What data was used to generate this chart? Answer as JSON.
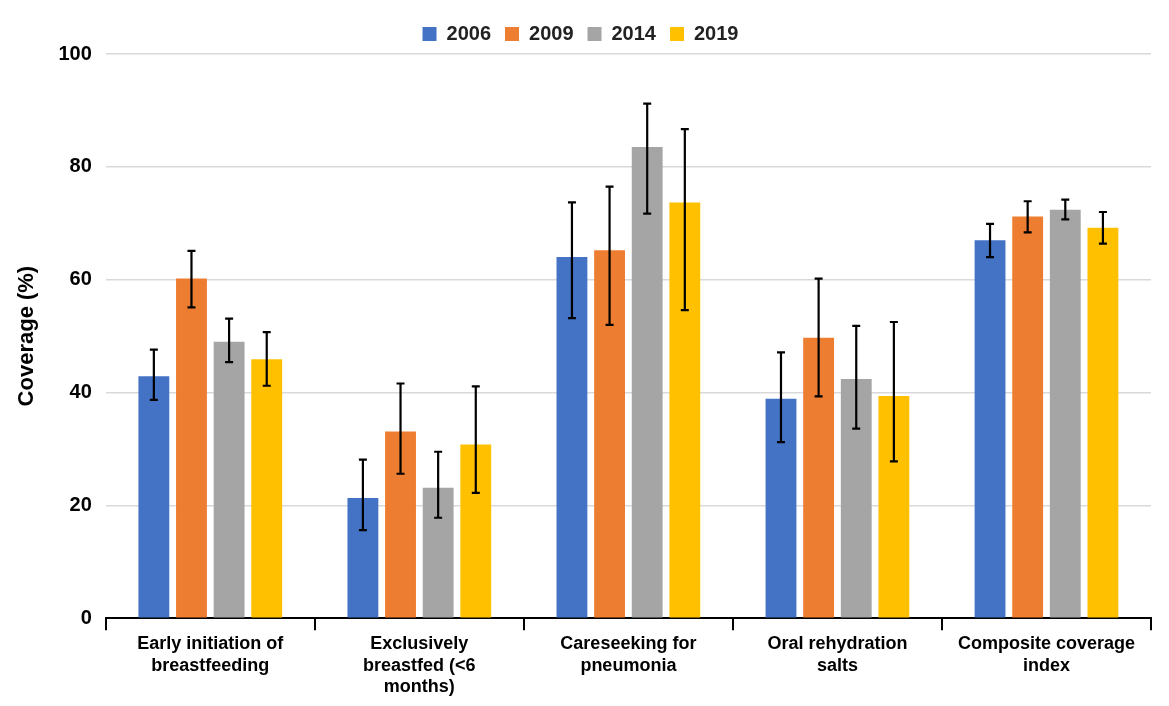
{
  "chart_data": {
    "type": "bar",
    "ylabel": "Coverage (%)",
    "categories": [
      "Early initiation of breastfeeding",
      "Exclusively breastfed (<6 months)",
      "Careseeking for pneumonia",
      "Oral rehydration salts",
      "Composite coverage index"
    ],
    "series": [
      {
        "name": "2006",
        "color": "#4472c4",
        "values": [
          42.9,
          21.3,
          64.0,
          38.9,
          67.0
        ],
        "errors": [
          [
            38.7,
            47.6
          ],
          [
            15.6,
            28.1
          ],
          [
            53.2,
            73.7
          ],
          [
            31.2,
            47.1
          ],
          [
            64.0,
            69.9
          ]
        ]
      },
      {
        "name": "2009",
        "color": "#ed7d31",
        "values": [
          60.2,
          33.1,
          65.2,
          49.7,
          71.2
        ],
        "errors": [
          [
            55.1,
            65.1
          ],
          [
            25.6,
            41.6
          ],
          [
            52.0,
            76.5
          ],
          [
            39.3,
            60.2
          ],
          [
            68.4,
            73.9
          ]
        ]
      },
      {
        "name": "2014",
        "color": "#a5a5a5",
        "values": [
          49.0,
          23.1,
          83.5,
          42.4,
          72.4
        ],
        "errors": [
          [
            45.4,
            53.1
          ],
          [
            17.8,
            29.5
          ],
          [
            71.7,
            91.2
          ],
          [
            33.6,
            51.8
          ],
          [
            70.7,
            74.2
          ]
        ]
      },
      {
        "name": "2019",
        "color": "#ffc000",
        "values": [
          45.9,
          30.8,
          73.7,
          39.4,
          69.2
        ],
        "errors": [
          [
            41.2,
            50.7
          ],
          [
            22.2,
            41.1
          ],
          [
            54.6,
            86.7
          ],
          [
            27.8,
            52.5
          ],
          [
            66.4,
            72.0
          ]
        ]
      }
    ],
    "ylim": [
      0,
      100
    ],
    "yticks": [
      0,
      20,
      40,
      60,
      80,
      100
    ],
    "grid": "y",
    "legend": "top"
  }
}
